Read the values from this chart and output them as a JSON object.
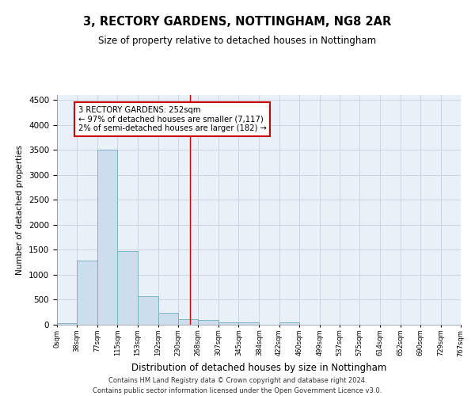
{
  "title": "3, RECTORY GARDENS, NOTTINGHAM, NG8 2AR",
  "subtitle": "Size of property relative to detached houses in Nottingham",
  "xlabel": "Distribution of detached houses by size in Nottingham",
  "ylabel": "Number of detached properties",
  "bar_color": "#ccdded",
  "bar_edge_color": "#7aaabb",
  "background_color": "#e8f0f8",
  "grid_color": "#c0ccd8",
  "property_line_color": "#cc0000",
  "property_size": 252,
  "annotation_text": "3 RECTORY GARDENS: 252sqm\n← 97% of detached houses are smaller (7,117)\n2% of semi-detached houses are larger (182) →",
  "annotation_box_color": "#cc0000",
  "bin_edges": [
    0,
    38,
    77,
    115,
    153,
    192,
    230,
    268,
    307,
    345,
    384,
    422,
    460,
    499,
    537,
    575,
    614,
    652,
    690,
    729,
    767
  ],
  "bin_labels": [
    "0sqm",
    "38sqm",
    "77sqm",
    "115sqm",
    "153sqm",
    "192sqm",
    "230sqm",
    "268sqm",
    "307sqm",
    "345sqm",
    "384sqm",
    "422sqm",
    "460sqm",
    "499sqm",
    "537sqm",
    "575sqm",
    "614sqm",
    "652sqm",
    "690sqm",
    "729sqm",
    "767sqm"
  ],
  "counts": [
    30,
    1280,
    3500,
    1480,
    575,
    240,
    115,
    90,
    55,
    40,
    0,
    55,
    0,
    0,
    0,
    0,
    0,
    0,
    0,
    0
  ],
  "ylim": [
    0,
    4600
  ],
  "yticks": [
    0,
    500,
    1000,
    1500,
    2000,
    2500,
    3000,
    3500,
    4000,
    4500
  ],
  "footer_line1": "Contains HM Land Registry data © Crown copyright and database right 2024.",
  "footer_line2": "Contains public sector information licensed under the Open Government Licence v3.0."
}
